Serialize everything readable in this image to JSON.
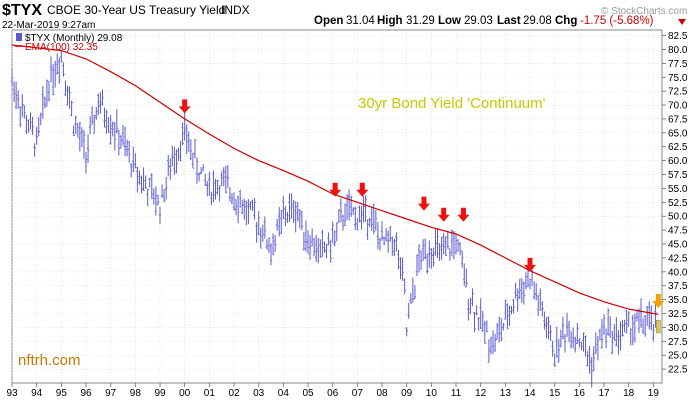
{
  "header": {
    "ticker": "$TYX",
    "name": "CBOE 30-Year US Treasury Yield",
    "exchange": "INDX",
    "date": "22-Mar-2019 9:27am",
    "open_label": "Open",
    "open": "31.04",
    "high_label": "High",
    "high": "31.29",
    "low_label": "Low",
    "low": "29.03",
    "last_label": "Last",
    "last": "29.08",
    "chg_label": "Chg",
    "chg": "-1.75 (-5.68%)",
    "chg_arrow_icon": "triangle-down-icon",
    "brand": "© StockCharts.com"
  },
  "legend": {
    "series": "$TYX (Monthly) 29.08",
    "ema": "EMA(100) 32.35"
  },
  "annotation": "30yr Bond Yield 'Continuum'",
  "watermark": "nftrh.com",
  "colors": {
    "bars": "#5a5ad0",
    "ema": "#cc0000",
    "arrow_red": "#ee1111",
    "arrow_orange": "#f0a000",
    "annotation": "#c8c800",
    "watermark": "#c87800",
    "grid": "#d8d8d8"
  },
  "chart_data": {
    "type": "line",
    "chart_style": "monthly OHLC bars with EMA(100) overlay",
    "ylim": [
      20.0,
      83.5
    ],
    "y_ticks": [
      "22.5",
      "25.0",
      "27.5",
      "30.0",
      "32.5",
      "35.0",
      "37.5",
      "40.0",
      "42.5",
      "45.0",
      "47.5",
      "50.0",
      "52.5",
      "55.0",
      "57.5",
      "60.0",
      "62.5",
      "65.0",
      "67.5",
      "70.0",
      "72.5",
      "75.0",
      "77.5",
      "80.0",
      "82.5"
    ],
    "x_ticks": [
      "93",
      "94",
      "95",
      "96",
      "97",
      "98",
      "99",
      "00",
      "01",
      "02",
      "03",
      "04",
      "05",
      "06",
      "07",
      "08",
      "09",
      "10",
      "11",
      "12",
      "13",
      "14",
      "15",
      "16",
      "17",
      "18",
      "19"
    ],
    "grid": true,
    "y_axis_side": "right",
    "series": [
      {
        "name": "$TYX (Monthly)",
        "x": [
          1993.0,
          1993.5,
          1994.0,
          1994.5,
          1995.0,
          1995.5,
          1996.0,
          1996.5,
          1997.0,
          1997.5,
          1998.0,
          1998.5,
          1999.0,
          1999.5,
          2000.0,
          2000.5,
          2001.0,
          2001.5,
          2002.0,
          2002.5,
          2003.0,
          2003.5,
          2004.0,
          2004.5,
          2005.0,
          2005.5,
          2006.0,
          2006.5,
          2007.0,
          2007.5,
          2008.0,
          2008.5,
          2008.9,
          2009.0,
          2009.5,
          2010.0,
          2010.5,
          2011.0,
          2011.5,
          2012.0,
          2012.5,
          2013.0,
          2013.5,
          2014.0,
          2014.5,
          2015.0,
          2015.5,
          2016.0,
          2016.5,
          2017.0,
          2017.5,
          2018.0,
          2018.5,
          2019.0,
          2019.2
        ],
        "y": [
          74.5,
          68.0,
          63.0,
          74.5,
          79.0,
          67.0,
          61.0,
          70.5,
          67.0,
          63.0,
          58.5,
          55.0,
          52.0,
          60.0,
          65.0,
          59.0,
          55.0,
          56.0,
          54.0,
          51.0,
          49.0,
          44.0,
          50.0,
          51.5,
          46.0,
          43.5,
          45.5,
          51.0,
          50.0,
          50.5,
          45.0,
          46.0,
          37.0,
          29.5,
          42.0,
          44.5,
          43.0,
          45.5,
          36.0,
          31.0,
          27.0,
          31.0,
          36.5,
          39.0,
          32.5,
          25.5,
          30.0,
          28.0,
          23.5,
          30.0,
          28.5,
          30.0,
          31.0,
          30.5,
          29.08
        ]
      },
      {
        "name": "EMA(100)",
        "x": [
          1993.0,
          1994.0,
          1995.0,
          1996.0,
          1997.0,
          1998.0,
          1999.0,
          2000.0,
          2001.0,
          2002.0,
          2003.0,
          2004.0,
          2005.0,
          2006.0,
          2007.0,
          2008.0,
          2009.0,
          2010.0,
          2011.0,
          2012.0,
          2013.0,
          2014.0,
          2015.0,
          2016.0,
          2017.0,
          2018.0,
          2019.0,
          2019.2
        ],
        "y": [
          80.8,
          80.3,
          79.8,
          78.3,
          76.0,
          73.5,
          70.5,
          67.5,
          64.8,
          62.2,
          60.0,
          58.2,
          56.3,
          54.0,
          52.5,
          51.0,
          49.5,
          48.0,
          46.8,
          44.8,
          42.5,
          40.2,
          38.2,
          36.2,
          34.6,
          33.3,
          32.5,
          32.35
        ]
      }
    ],
    "markers": [
      {
        "type": "red-down-arrow",
        "x": 2000.0,
        "y": 68.5
      },
      {
        "type": "red-down-arrow",
        "x": 2006.1,
        "y": 53.5
      },
      {
        "type": "red-down-arrow",
        "x": 2007.2,
        "y": 53.5
      },
      {
        "type": "red-down-arrow",
        "x": 2009.7,
        "y": 51.0
      },
      {
        "type": "red-down-arrow",
        "x": 2010.5,
        "y": 49.0
      },
      {
        "type": "red-down-arrow",
        "x": 2011.3,
        "y": 49.0
      },
      {
        "type": "red-down-arrow",
        "x": 2014.0,
        "y": 40.0
      },
      {
        "type": "orange-down-arrow",
        "x": 2019.2,
        "y": 33.5
      }
    ]
  }
}
